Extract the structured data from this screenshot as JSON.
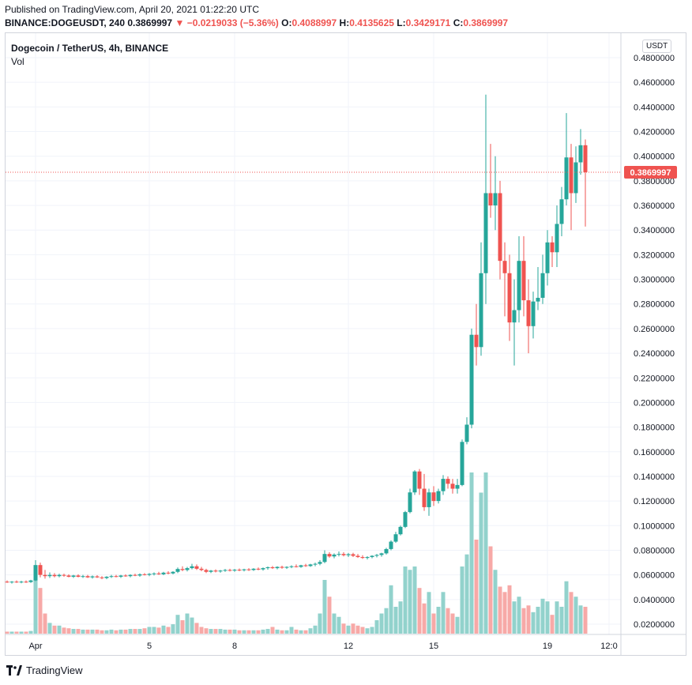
{
  "header": {
    "published": "Published on TradingView.com, April 20, 2021 01:22:20 UTC",
    "symbol": "BINANCE:DOGEUSDT, 240",
    "last": "0.3869997",
    "arrow": "▼",
    "change": "−0.0219033 (−5.36%)",
    "o_label": "O:",
    "o_value": "0.4088997",
    "h_label": "H:",
    "h_value": "0.4135625",
    "l_label": "L:",
    "l_value": "0.3429171",
    "c_label": "C:",
    "c_value": "0.3869997"
  },
  "legend": {
    "title": "Dogecoin / TetherUS, 4h, BINANCE",
    "volume": "Vol"
  },
  "currency_badge": "USDT",
  "brand": "TradingView",
  "colors": {
    "up": "#26a69a",
    "down": "#ef5350",
    "up_vol": "#92d2cc",
    "down_vol": "#f7a9a7",
    "grid": "#f0f3fa",
    "last_price": "#ef5350"
  },
  "chart_data": {
    "type": "candlestick",
    "ylim": [
      0.01,
      0.49
    ],
    "y_ticks": [
      "0.4800000",
      "0.4600000",
      "0.4400000",
      "0.4200000",
      "0.4000000",
      "0.3800000",
      "0.3600000",
      "0.3400000",
      "0.3200000",
      "0.3000000",
      "0.2800000",
      "0.2600000",
      "0.2400000",
      "0.2200000",
      "0.2000000",
      "0.1800000",
      "0.1600000",
      "0.1400000",
      "0.1200000",
      "0.1000000",
      "0.0800000",
      "0.0600000",
      "0.0400000",
      "0.0200000"
    ],
    "x_ticks": [
      {
        "label": "Apr",
        "bar": 6
      },
      {
        "label": "5",
        "bar": 30
      },
      {
        "label": "8",
        "bar": 48
      },
      {
        "label": "12",
        "bar": 72
      },
      {
        "label": "15",
        "bar": 90
      },
      {
        "label": "19",
        "bar": 114
      },
      {
        "label": "12:0",
        "bar": 127
      }
    ],
    "last_price": 0.3869997,
    "last_price_label": "0.3869997",
    "volume_max": 1.0,
    "candles": [
      {
        "o": 0.0545,
        "h": 0.0555,
        "l": 0.0535,
        "c": 0.054,
        "v": 0.03
      },
      {
        "o": 0.054,
        "h": 0.055,
        "l": 0.053,
        "c": 0.0545,
        "v": 0.03
      },
      {
        "o": 0.0545,
        "h": 0.0555,
        "l": 0.0535,
        "c": 0.054,
        "v": 0.03
      },
      {
        "o": 0.054,
        "h": 0.0552,
        "l": 0.0532,
        "c": 0.0545,
        "v": 0.03
      },
      {
        "o": 0.0545,
        "h": 0.0555,
        "l": 0.0535,
        "c": 0.0542,
        "v": 0.03
      },
      {
        "o": 0.0542,
        "h": 0.056,
        "l": 0.0535,
        "c": 0.0555,
        "v": 0.04
      },
      {
        "o": 0.0555,
        "h": 0.072,
        "l": 0.055,
        "c": 0.068,
        "v": 0.9
      },
      {
        "o": 0.068,
        "h": 0.07,
        "l": 0.058,
        "c": 0.06,
        "v": 0.68
      },
      {
        "o": 0.06,
        "h": 0.064,
        "l": 0.057,
        "c": 0.059,
        "v": 0.3
      },
      {
        "o": 0.059,
        "h": 0.062,
        "l": 0.0575,
        "c": 0.06,
        "v": 0.16
      },
      {
        "o": 0.06,
        "h": 0.0615,
        "l": 0.058,
        "c": 0.059,
        "v": 0.12
      },
      {
        "o": 0.059,
        "h": 0.061,
        "l": 0.058,
        "c": 0.06,
        "v": 0.12
      },
      {
        "o": 0.06,
        "h": 0.061,
        "l": 0.0585,
        "c": 0.0595,
        "v": 0.09
      },
      {
        "o": 0.0595,
        "h": 0.0605,
        "l": 0.058,
        "c": 0.0585,
        "v": 0.08
      },
      {
        "o": 0.0585,
        "h": 0.06,
        "l": 0.0575,
        "c": 0.0595,
        "v": 0.07
      },
      {
        "o": 0.0595,
        "h": 0.0605,
        "l": 0.058,
        "c": 0.0585,
        "v": 0.07
      },
      {
        "o": 0.0585,
        "h": 0.06,
        "l": 0.0575,
        "c": 0.059,
        "v": 0.06
      },
      {
        "o": 0.059,
        "h": 0.06,
        "l": 0.0575,
        "c": 0.058,
        "v": 0.06
      },
      {
        "o": 0.058,
        "h": 0.0595,
        "l": 0.057,
        "c": 0.0588,
        "v": 0.06
      },
      {
        "o": 0.0588,
        "h": 0.0598,
        "l": 0.0575,
        "c": 0.058,
        "v": 0.06
      },
      {
        "o": 0.058,
        "h": 0.059,
        "l": 0.0565,
        "c": 0.0575,
        "v": 0.05
      },
      {
        "o": 0.0575,
        "h": 0.059,
        "l": 0.0565,
        "c": 0.0585,
        "v": 0.05
      },
      {
        "o": 0.0585,
        "h": 0.06,
        "l": 0.0575,
        "c": 0.059,
        "v": 0.06
      },
      {
        "o": 0.059,
        "h": 0.06,
        "l": 0.058,
        "c": 0.0585,
        "v": 0.05
      },
      {
        "o": 0.0585,
        "h": 0.06,
        "l": 0.0575,
        "c": 0.0595,
        "v": 0.06
      },
      {
        "o": 0.0595,
        "h": 0.0605,
        "l": 0.0585,
        "c": 0.059,
        "v": 0.06
      },
      {
        "o": 0.059,
        "h": 0.0605,
        "l": 0.058,
        "c": 0.06,
        "v": 0.07
      },
      {
        "o": 0.06,
        "h": 0.061,
        "l": 0.059,
        "c": 0.0595,
        "v": 0.07
      },
      {
        "o": 0.0595,
        "h": 0.0612,
        "l": 0.0585,
        "c": 0.0605,
        "v": 0.07
      },
      {
        "o": 0.0605,
        "h": 0.0615,
        "l": 0.0595,
        "c": 0.06,
        "v": 0.08
      },
      {
        "o": 0.06,
        "h": 0.0615,
        "l": 0.059,
        "c": 0.0608,
        "v": 0.1
      },
      {
        "o": 0.0608,
        "h": 0.062,
        "l": 0.0595,
        "c": 0.0612,
        "v": 0.1
      },
      {
        "o": 0.0612,
        "h": 0.0625,
        "l": 0.06,
        "c": 0.0605,
        "v": 0.09
      },
      {
        "o": 0.0605,
        "h": 0.0625,
        "l": 0.0598,
        "c": 0.0618,
        "v": 0.12
      },
      {
        "o": 0.0618,
        "h": 0.063,
        "l": 0.0605,
        "c": 0.0612,
        "v": 0.1
      },
      {
        "o": 0.0612,
        "h": 0.063,
        "l": 0.0605,
        "c": 0.0625,
        "v": 0.14
      },
      {
        "o": 0.0625,
        "h": 0.066,
        "l": 0.0615,
        "c": 0.0648,
        "v": 0.28
      },
      {
        "o": 0.0648,
        "h": 0.067,
        "l": 0.063,
        "c": 0.064,
        "v": 0.2
      },
      {
        "o": 0.064,
        "h": 0.0665,
        "l": 0.0628,
        "c": 0.0655,
        "v": 0.3
      },
      {
        "o": 0.0655,
        "h": 0.069,
        "l": 0.0645,
        "c": 0.067,
        "v": 0.24
      },
      {
        "o": 0.067,
        "h": 0.0685,
        "l": 0.064,
        "c": 0.065,
        "v": 0.16
      },
      {
        "o": 0.065,
        "h": 0.0665,
        "l": 0.063,
        "c": 0.064,
        "v": 0.1
      },
      {
        "o": 0.064,
        "h": 0.065,
        "l": 0.0615,
        "c": 0.0625,
        "v": 0.08
      },
      {
        "o": 0.0625,
        "h": 0.064,
        "l": 0.0615,
        "c": 0.0635,
        "v": 0.07
      },
      {
        "o": 0.0635,
        "h": 0.0645,
        "l": 0.062,
        "c": 0.0628,
        "v": 0.07
      },
      {
        "o": 0.0628,
        "h": 0.064,
        "l": 0.0618,
        "c": 0.0635,
        "v": 0.07
      },
      {
        "o": 0.0635,
        "h": 0.0648,
        "l": 0.0625,
        "c": 0.064,
        "v": 0.06
      },
      {
        "o": 0.064,
        "h": 0.065,
        "l": 0.0628,
        "c": 0.0635,
        "v": 0.06
      },
      {
        "o": 0.0635,
        "h": 0.0648,
        "l": 0.0625,
        "c": 0.0642,
        "v": 0.06
      },
      {
        "o": 0.0642,
        "h": 0.0652,
        "l": 0.063,
        "c": 0.0638,
        "v": 0.05
      },
      {
        "o": 0.0638,
        "h": 0.065,
        "l": 0.0628,
        "c": 0.0645,
        "v": 0.05
      },
      {
        "o": 0.0645,
        "h": 0.0655,
        "l": 0.0632,
        "c": 0.064,
        "v": 0.05
      },
      {
        "o": 0.064,
        "h": 0.0655,
        "l": 0.0632,
        "c": 0.065,
        "v": 0.05
      },
      {
        "o": 0.065,
        "h": 0.066,
        "l": 0.0638,
        "c": 0.0645,
        "v": 0.05
      },
      {
        "o": 0.0645,
        "h": 0.066,
        "l": 0.0635,
        "c": 0.0655,
        "v": 0.06
      },
      {
        "o": 0.0655,
        "h": 0.0668,
        "l": 0.0642,
        "c": 0.0662,
        "v": 0.07
      },
      {
        "o": 0.0662,
        "h": 0.0672,
        "l": 0.0648,
        "c": 0.0655,
        "v": 0.1
      },
      {
        "o": 0.0655,
        "h": 0.067,
        "l": 0.0645,
        "c": 0.0665,
        "v": 0.06
      },
      {
        "o": 0.0665,
        "h": 0.0675,
        "l": 0.065,
        "c": 0.0658,
        "v": 0.05
      },
      {
        "o": 0.0658,
        "h": 0.067,
        "l": 0.0648,
        "c": 0.0665,
        "v": 0.05
      },
      {
        "o": 0.0665,
        "h": 0.0678,
        "l": 0.0655,
        "c": 0.067,
        "v": 0.1
      },
      {
        "o": 0.067,
        "h": 0.0685,
        "l": 0.066,
        "c": 0.0665,
        "v": 0.06
      },
      {
        "o": 0.0665,
        "h": 0.0682,
        "l": 0.0658,
        "c": 0.0678,
        "v": 0.05
      },
      {
        "o": 0.0678,
        "h": 0.069,
        "l": 0.0665,
        "c": 0.0672,
        "v": 0.05
      },
      {
        "o": 0.0672,
        "h": 0.069,
        "l": 0.0665,
        "c": 0.0685,
        "v": 0.08
      },
      {
        "o": 0.0685,
        "h": 0.07,
        "l": 0.067,
        "c": 0.069,
        "v": 0.12
      },
      {
        "o": 0.069,
        "h": 0.072,
        "l": 0.0678,
        "c": 0.0705,
        "v": 0.3
      },
      {
        "o": 0.0705,
        "h": 0.08,
        "l": 0.0695,
        "c": 0.077,
        "v": 0.8
      },
      {
        "o": 0.077,
        "h": 0.0785,
        "l": 0.074,
        "c": 0.075,
        "v": 0.55
      },
      {
        "o": 0.075,
        "h": 0.0775,
        "l": 0.0735,
        "c": 0.0765,
        "v": 0.3
      },
      {
        "o": 0.0765,
        "h": 0.079,
        "l": 0.075,
        "c": 0.077,
        "v": 0.25
      },
      {
        "o": 0.077,
        "h": 0.0785,
        "l": 0.075,
        "c": 0.076,
        "v": 0.15
      },
      {
        "o": 0.076,
        "h": 0.0778,
        "l": 0.0745,
        "c": 0.0768,
        "v": 0.12
      },
      {
        "o": 0.0768,
        "h": 0.078,
        "l": 0.0745,
        "c": 0.0755,
        "v": 0.15
      },
      {
        "o": 0.0755,
        "h": 0.077,
        "l": 0.0738,
        "c": 0.0745,
        "v": 0.12
      },
      {
        "o": 0.0745,
        "h": 0.076,
        "l": 0.073,
        "c": 0.0738,
        "v": 0.1
      },
      {
        "o": 0.0738,
        "h": 0.0752,
        "l": 0.0725,
        "c": 0.0745,
        "v": 0.08
      },
      {
        "o": 0.0745,
        "h": 0.076,
        "l": 0.0735,
        "c": 0.0755,
        "v": 0.1
      },
      {
        "o": 0.0755,
        "h": 0.077,
        "l": 0.0742,
        "c": 0.0762,
        "v": 0.2
      },
      {
        "o": 0.0762,
        "h": 0.078,
        "l": 0.0748,
        "c": 0.0775,
        "v": 0.3
      },
      {
        "o": 0.0775,
        "h": 0.082,
        "l": 0.0765,
        "c": 0.081,
        "v": 0.38
      },
      {
        "o": 0.081,
        "h": 0.088,
        "l": 0.08,
        "c": 0.087,
        "v": 0.72
      },
      {
        "o": 0.087,
        "h": 0.095,
        "l": 0.086,
        "c": 0.093,
        "v": 0.4
      },
      {
        "o": 0.093,
        "h": 0.1,
        "l": 0.092,
        "c": 0.099,
        "v": 0.48
      },
      {
        "o": 0.099,
        "h": 0.112,
        "l": 0.098,
        "c": 0.111,
        "v": 1.0
      },
      {
        "o": 0.111,
        "h": 0.13,
        "l": 0.11,
        "c": 0.127,
        "v": 0.95
      },
      {
        "o": 0.127,
        "h": 0.145,
        "l": 0.125,
        "c": 0.144,
        "v": 1.0
      },
      {
        "o": 0.144,
        "h": 0.146,
        "l": 0.125,
        "c": 0.13,
        "v": 0.68
      },
      {
        "o": 0.13,
        "h": 0.142,
        "l": 0.112,
        "c": 0.115,
        "v": 0.45
      },
      {
        "o": 0.115,
        "h": 0.13,
        "l": 0.108,
        "c": 0.127,
        "v": 0.62
      },
      {
        "o": 0.127,
        "h": 0.132,
        "l": 0.116,
        "c": 0.12,
        "v": 0.3
      },
      {
        "o": 0.12,
        "h": 0.13,
        "l": 0.118,
        "c": 0.128,
        "v": 0.4
      },
      {
        "o": 0.128,
        "h": 0.141,
        "l": 0.125,
        "c": 0.138,
        "v": 0.62
      },
      {
        "o": 0.138,
        "h": 0.14,
        "l": 0.13,
        "c": 0.134,
        "v": 0.38
      },
      {
        "o": 0.134,
        "h": 0.138,
        "l": 0.126,
        "c": 0.13,
        "v": 0.3
      },
      {
        "o": 0.13,
        "h": 0.138,
        "l": 0.126,
        "c": 0.133,
        "v": 0.25
      },
      {
        "o": 0.133,
        "h": 0.17,
        "l": 0.132,
        "c": 0.168,
        "v": 1.0
      },
      {
        "o": 0.168,
        "h": 0.188,
        "l": 0.166,
        "c": 0.182,
        "v": 1.18
      },
      {
        "o": 0.182,
        "h": 0.26,
        "l": 0.179,
        "c": 0.255,
        "v": 2.4
      },
      {
        "o": 0.255,
        "h": 0.28,
        "l": 0.23,
        "c": 0.245,
        "v": 1.4
      },
      {
        "o": 0.245,
        "h": 0.33,
        "l": 0.238,
        "c": 0.305,
        "v": 2.1
      },
      {
        "o": 0.305,
        "h": 0.45,
        "l": 0.28,
        "c": 0.37,
        "v": 2.4
      },
      {
        "o": 0.37,
        "h": 0.41,
        "l": 0.35,
        "c": 0.36,
        "v": 1.3
      },
      {
        "o": 0.36,
        "h": 0.4,
        "l": 0.34,
        "c": 0.37,
        "v": 0.95
      },
      {
        "o": 0.37,
        "h": 0.38,
        "l": 0.3,
        "c": 0.315,
        "v": 0.7
      },
      {
        "o": 0.315,
        "h": 0.33,
        "l": 0.27,
        "c": 0.305,
        "v": 0.62
      },
      {
        "o": 0.305,
        "h": 0.32,
        "l": 0.25,
        "c": 0.265,
        "v": 0.72
      },
      {
        "o": 0.265,
        "h": 0.3,
        "l": 0.23,
        "c": 0.275,
        "v": 0.48
      },
      {
        "o": 0.275,
        "h": 0.335,
        "l": 0.265,
        "c": 0.315,
        "v": 0.55
      },
      {
        "o": 0.315,
        "h": 0.335,
        "l": 0.27,
        "c": 0.283,
        "v": 0.38
      },
      {
        "o": 0.283,
        "h": 0.3,
        "l": 0.24,
        "c": 0.262,
        "v": 0.42
      },
      {
        "o": 0.262,
        "h": 0.29,
        "l": 0.252,
        "c": 0.282,
        "v": 0.32
      },
      {
        "o": 0.282,
        "h": 0.31,
        "l": 0.275,
        "c": 0.285,
        "v": 0.4
      },
      {
        "o": 0.285,
        "h": 0.32,
        "l": 0.28,
        "c": 0.305,
        "v": 0.52
      },
      {
        "o": 0.305,
        "h": 0.34,
        "l": 0.295,
        "c": 0.33,
        "v": 0.48
      },
      {
        "o": 0.33,
        "h": 0.335,
        "l": 0.31,
        "c": 0.322,
        "v": 0.28
      },
      {
        "o": 0.322,
        "h": 0.36,
        "l": 0.31,
        "c": 0.345,
        "v": 0.48
      },
      {
        "o": 0.345,
        "h": 0.375,
        "l": 0.335,
        "c": 0.365,
        "v": 0.4
      },
      {
        "o": 0.365,
        "h": 0.435,
        "l": 0.36,
        "c": 0.399,
        "v": 0.78
      },
      {
        "o": 0.399,
        "h": 0.41,
        "l": 0.34,
        "c": 0.37,
        "v": 0.62
      },
      {
        "o": 0.37,
        "h": 0.408,
        "l": 0.362,
        "c": 0.395,
        "v": 0.55
      },
      {
        "o": 0.395,
        "h": 0.422,
        "l": 0.385,
        "c": 0.4089,
        "v": 0.42
      },
      {
        "o": 0.4089,
        "h": 0.4136,
        "l": 0.3429,
        "c": 0.387,
        "v": 0.4
      }
    ]
  }
}
